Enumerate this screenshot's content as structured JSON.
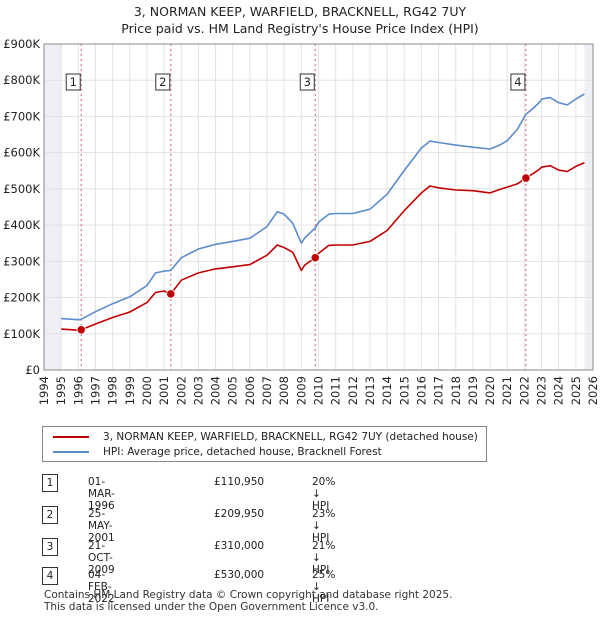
{
  "title_line1": "3, NORMAN KEEP, WARFIELD, BRACKNELL, RG42 7UY",
  "title_line2": "Price paid vs. HM Land Registry's House Price Index (HPI)",
  "chart_data": {
    "type": "line",
    "xlim": [
      1994,
      2026
    ],
    "ylim": [
      0,
      900000
    ],
    "x_ticks": [
      1994,
      1995,
      1996,
      1997,
      1998,
      1999,
      2000,
      2001,
      2002,
      2003,
      2004,
      2005,
      2006,
      2007,
      2008,
      2009,
      2010,
      2011,
      2012,
      2013,
      2014,
      2015,
      2016,
      2017,
      2018,
      2019,
      2020,
      2021,
      2022,
      2023,
      2024,
      2025,
      2026
    ],
    "y_ticks": [
      0,
      100000,
      200000,
      300000,
      400000,
      500000,
      600000,
      700000,
      800000,
      900000
    ],
    "y_tick_labels": [
      "£0",
      "£100K",
      "£200K",
      "£300K",
      "£400K",
      "£500K",
      "£600K",
      "£700K",
      "£800K",
      "£900K"
    ],
    "data_start": 1995.0,
    "data_end": 2025.5,
    "series": [
      {
        "name": "3, NORMAN KEEP, WARFIELD, BRACKNELL, RG42 7UY (detached house)",
        "color": "#c00000",
        "x": [
          1995.0,
          1996.0,
          1996.17,
          1997.0,
          1998.0,
          1999.0,
          2000.0,
          2000.5,
          2001.0,
          2001.39,
          2002.0,
          2003.0,
          2004.0,
          2005.0,
          2006.0,
          2007.0,
          2007.6,
          2008.0,
          2008.5,
          2009.0,
          2009.2,
          2009.81,
          2010.0,
          2010.6,
          2011.0,
          2012.0,
          2013.0,
          2014.0,
          2015.0,
          2016.0,
          2016.5,
          2017.0,
          2018.0,
          2019.0,
          2020.0,
          2020.6,
          2021.0,
          2021.6,
          2022.09,
          2022.5,
          2022.9,
          2023.0,
          2023.5,
          2024.0,
          2024.5,
          2025.0,
          2025.5
        ],
        "y": [
          113000,
          110000,
          110950,
          127000,
          145000,
          160000,
          186000,
          214000,
          218000,
          209950,
          248000,
          268000,
          279000,
          285000,
          291000,
          317000,
          345000,
          338000,
          325000,
          275000,
          290000,
          310000,
          322000,
          344000,
          345000,
          345000,
          355000,
          385000,
          440000,
          489000,
          508000,
          503000,
          497000,
          495000,
          489000,
          499000,
          505000,
          514000,
          530000,
          542000,
          555000,
          560000,
          564000,
          552000,
          548000,
          562000,
          572000
        ]
      },
      {
        "name": "HPI: Average price, detached house, Bracknell Forest",
        "color": "#5b8ccc",
        "x": [
          1995.0,
          1996.0,
          1996.17,
          1997.0,
          1998.0,
          1999.0,
          2000.0,
          2000.5,
          2001.0,
          2001.39,
          2002.0,
          2003.0,
          2004.0,
          2005.0,
          2006.0,
          2007.0,
          2007.6,
          2008.0,
          2008.5,
          2009.0,
          2009.2,
          2009.81,
          2010.0,
          2010.6,
          2011.0,
          2012.0,
          2013.0,
          2014.0,
          2015.0,
          2016.0,
          2016.5,
          2017.0,
          2018.0,
          2019.0,
          2020.0,
          2020.6,
          2021.0,
          2021.6,
          2022.09,
          2022.5,
          2022.9,
          2023.0,
          2023.5,
          2024.0,
          2024.5,
          2025.0,
          2025.5
        ],
        "y": [
          142000,
          139000,
          140000,
          161000,
          183000,
          202000,
          233000,
          268000,
          273000,
          275000,
          310000,
          334000,
          347000,
          355000,
          364000,
          396000,
          437000,
          430000,
          405000,
          350000,
          365000,
          392000,
          408000,
          430000,
          432000,
          432000,
          444000,
          485000,
          551000,
          613000,
          632000,
          628000,
          621000,
          615000,
          610000,
          622000,
          633000,
          665000,
          706000,
          722000,
          740000,
          748000,
          752000,
          738000,
          732000,
          748000,
          762000
        ]
      }
    ],
    "sales": [
      {
        "n": "1",
        "x": 1996.17,
        "y": 110950
      },
      {
        "n": "2",
        "x": 2001.39,
        "y": 209950
      },
      {
        "n": "3",
        "x": 2009.81,
        "y": 310000
      },
      {
        "n": "4",
        "x": 2022.09,
        "y": 530000
      }
    ]
  },
  "legend": {
    "red_label": "3, NORMAN KEEP, WARFIELD, BRACKNELL, RG42 7UY (detached house)",
    "blue_label": "HPI: Average price, detached house, Bracknell Forest"
  },
  "sales_table": [
    {
      "n": "1",
      "date": "01-MAR-1996",
      "price": "£110,950",
      "hpi": "20% ↓ HPI"
    },
    {
      "n": "2",
      "date": "25-MAY-2001",
      "price": "£209,950",
      "hpi": "23% ↓ HPI"
    },
    {
      "n": "3",
      "date": "21-OCT-2009",
      "price": "£310,000",
      "hpi": "21% ↓ HPI"
    },
    {
      "n": "4",
      "date": "04-FEB-2022",
      "price": "£530,000",
      "hpi": "25% ↓ HPI"
    }
  ],
  "footer_line1": "Contains HM Land Registry data © Crown copyright and database right 2025.",
  "footer_line2": "This data is licensed under the Open Government Licence v3.0."
}
